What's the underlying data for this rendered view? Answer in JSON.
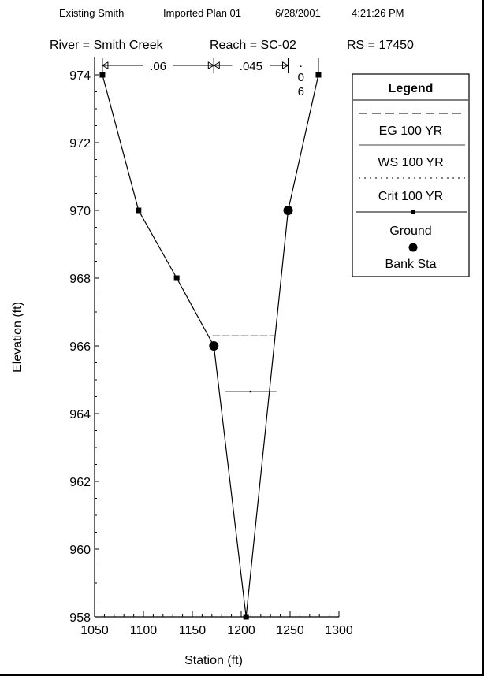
{
  "header": {
    "project": "Existing Smith",
    "plan": "Imported Plan 01",
    "date": "6/28/2001",
    "time": "4:21:26 PM"
  },
  "subtitle": {
    "river": "River = Smith Creek",
    "reach": "Reach = SC-02",
    "rs": "RS = 17450"
  },
  "colors": {
    "line": "#000000",
    "background": "#ffffff"
  },
  "chart_data": {
    "type": "line",
    "xlabel": "Station (ft)",
    "ylabel": "Elevation (ft)",
    "xlim": [
      1050,
      1300
    ],
    "ylim": [
      958,
      974
    ],
    "x_ticks": [
      1050,
      1100,
      1150,
      1200,
      1250,
      1300
    ],
    "y_ticks": [
      958,
      960,
      962,
      964,
      966,
      968,
      970,
      972,
      974
    ],
    "grid": false,
    "legend_placement": "top-right",
    "ground": {
      "x": [
        1058,
        1095,
        1134,
        1172,
        1205,
        1248,
        1279
      ],
      "y": [
        974,
        970,
        968,
        966,
        958,
        970,
        974
      ]
    },
    "bank_stations": [
      {
        "x": 1172,
        "y": 966
      },
      {
        "x": 1248,
        "y": 970
      }
    ],
    "water_levels": [
      {
        "name": "EG 100 YR",
        "y": 966.3,
        "x_range": [
          1170.5,
          1234.5
        ]
      },
      {
        "name": "WS 100 YR",
        "y": 964.65,
        "x_range": [
          1183,
          1236
        ]
      }
    ],
    "manning_n": [
      {
        "value": ".06",
        "x_range": [
          1058,
          1172
        ]
      },
      {
        "value": ".045",
        "x_range": [
          1172,
          1248
        ]
      },
      {
        "value": ".06",
        "x_range": [
          1248,
          1279
        ]
      }
    ]
  },
  "legend": {
    "title": "Legend",
    "items": [
      "EG 100 YR",
      "WS 100 YR",
      "Crit 100 YR",
      "Ground",
      "Bank Sta"
    ]
  }
}
